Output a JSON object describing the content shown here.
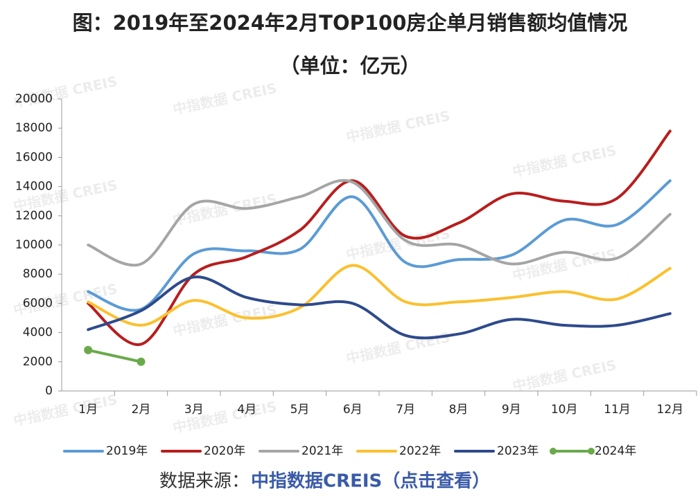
{
  "chart_data": {
    "type": "line",
    "title": "图：2019年至2024年2月TOP100房企单月销售额均值情况",
    "subtitle": "（单位：亿元）",
    "categories": [
      "1月",
      "2月",
      "3月",
      "4月",
      "5月",
      "6月",
      "7月",
      "8月",
      "9月",
      "10月",
      "11月",
      "12月"
    ],
    "series": [
      {
        "name": "2019年",
        "color": "#5b9bd5",
        "values": [
          6800,
          5600,
          9400,
          9600,
          9700,
          13300,
          8800,
          9000,
          9300,
          11700,
          11400,
          14400
        ]
      },
      {
        "name": "2020年",
        "color": "#b81d1d",
        "values": [
          6000,
          3200,
          8000,
          9200,
          11000,
          14400,
          10600,
          11500,
          13500,
          13000,
          13200,
          17800
        ]
      },
      {
        "name": "2021年",
        "color": "#a5a5a5",
        "values": [
          10000,
          8700,
          12800,
          12500,
          13300,
          14300,
          10300,
          10000,
          8700,
          9500,
          9100,
          12100
        ]
      },
      {
        "name": "2022年",
        "color": "#fbc02d",
        "values": [
          6100,
          4500,
          6200,
          5000,
          5700,
          8600,
          6100,
          6100,
          6400,
          6800,
          6300,
          8400
        ]
      },
      {
        "name": "2023年",
        "color": "#2e4a8c",
        "values": [
          4200,
          5500,
          7800,
          6400,
          5900,
          6000,
          3800,
          3900,
          4900,
          4500,
          4500,
          5300
        ]
      },
      {
        "name": "2024年",
        "color": "#6aaa4a",
        "values": [
          2800,
          2000,
          null,
          null,
          null,
          null,
          null,
          null,
          null,
          null,
          null,
          null
        ],
        "markers": true
      }
    ],
    "ylim": [
      0,
      20000
    ],
    "yticks": [
      0,
      2000,
      4000,
      6000,
      8000,
      10000,
      12000,
      14000,
      16000,
      18000,
      20000
    ],
    "source_label": "数据来源：",
    "source_link": "中指数据CREIS（点击查看）",
    "watermark": "中指数据 CREIS"
  }
}
